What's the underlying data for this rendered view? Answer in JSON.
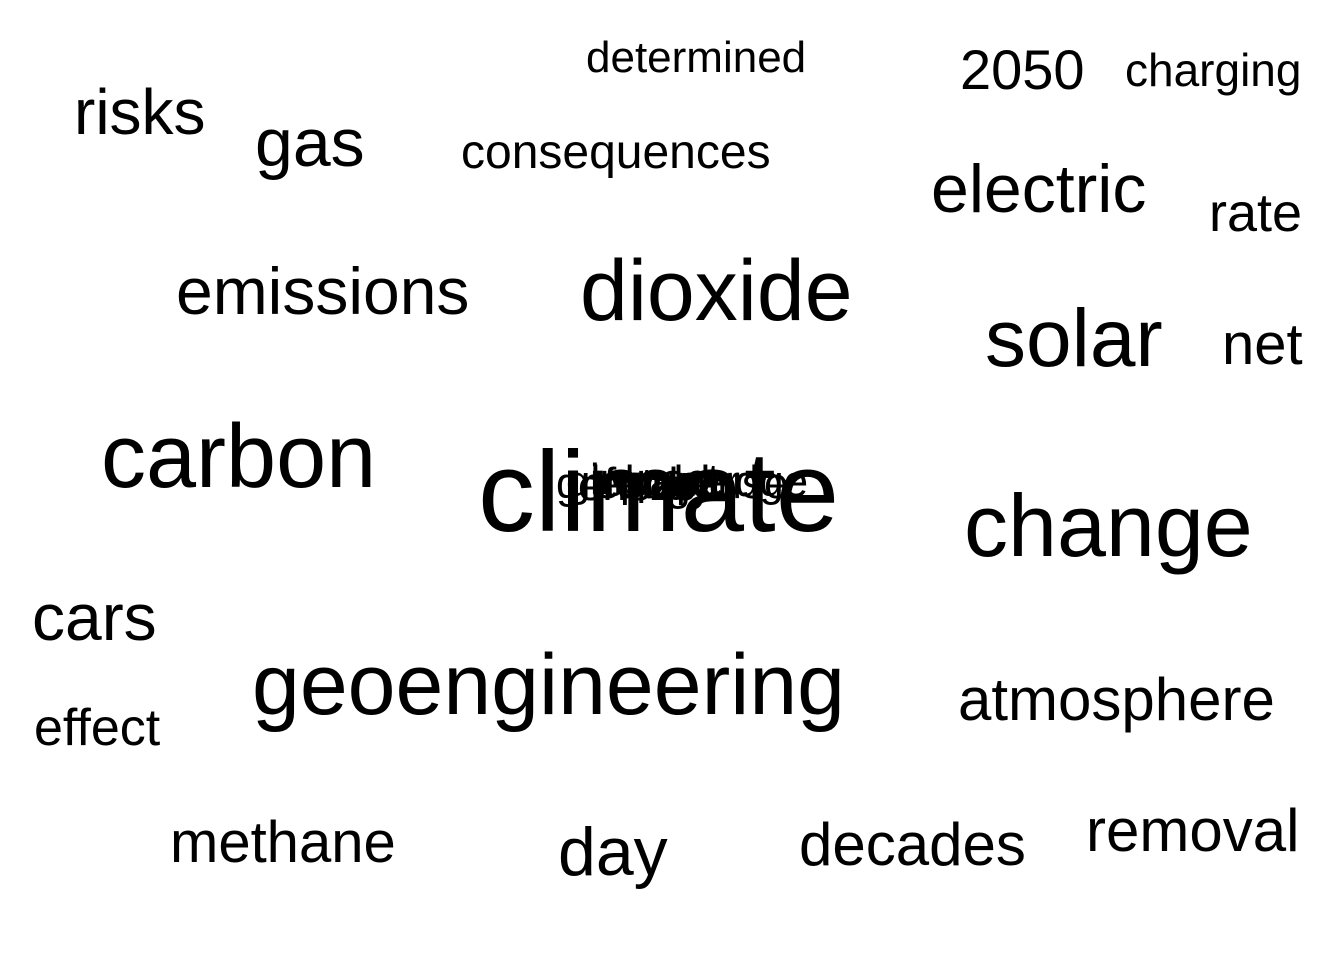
{
  "cloud": {
    "words": [
      {
        "id": "determined",
        "text": "determined"
      },
      {
        "id": "2050",
        "text": "2050"
      },
      {
        "id": "charging",
        "text": "charging"
      },
      {
        "id": "risks",
        "text": "risks"
      },
      {
        "id": "gas",
        "text": "gas"
      },
      {
        "id": "consequences",
        "text": "consequences"
      },
      {
        "id": "electric",
        "text": "electric"
      },
      {
        "id": "rate",
        "text": "rate"
      },
      {
        "id": "emissions",
        "text": "emissions"
      },
      {
        "id": "dioxide",
        "text": "dioxide"
      },
      {
        "id": "solar",
        "text": "solar"
      },
      {
        "id": "net",
        "text": "net"
      },
      {
        "id": "carbon",
        "text": "carbon"
      },
      {
        "id": "climate",
        "text": "climate"
      },
      {
        "id": "change",
        "text": "change"
      },
      {
        "id": "cars",
        "text": "cars"
      },
      {
        "id": "geoengineering",
        "text": "geoengineering"
      },
      {
        "id": "atmosphere",
        "text": "atmosphere"
      },
      {
        "id": "effect",
        "text": "effect"
      },
      {
        "id": "methane",
        "text": "methane"
      },
      {
        "id": "day",
        "text": "day"
      },
      {
        "id": "decades",
        "text": "decades"
      },
      {
        "id": "removal",
        "text": "removal"
      }
    ],
    "overlap_cluster": [
      "greenhouse",
      "global",
      "energy",
      "impact",
      "future",
      "power",
      "zero",
      "pledge"
    ]
  }
}
